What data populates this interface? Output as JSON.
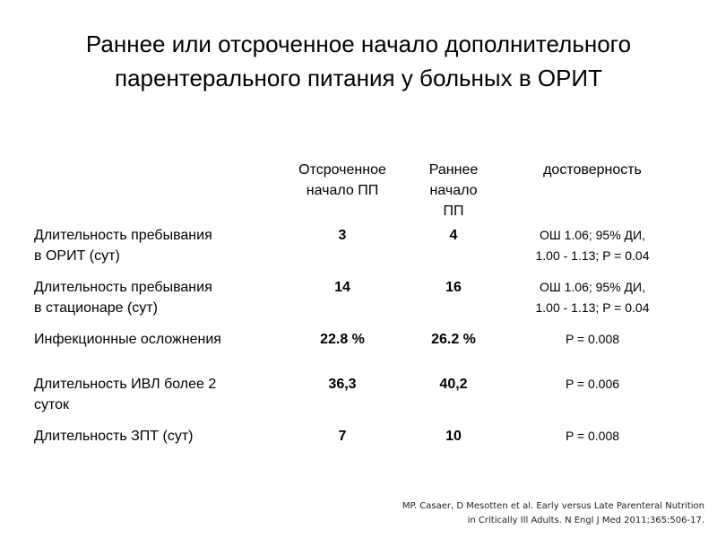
{
  "title": {
    "line1": "Раннее или отсроченное начало дополнительного",
    "line2": "парентерального питания у больных в ОРИТ"
  },
  "table": {
    "headers": {
      "label": "",
      "late": [
        "Отсроченное",
        "начало ПП"
      ],
      "early": [
        "Раннее",
        "начало",
        "ПП"
      ],
      "significance": [
        "достоверность"
      ]
    },
    "rows": [
      {
        "label": [
          "Длительность пребывания",
          "в ОРИТ (сут)"
        ],
        "late": "3",
        "early": "4",
        "significance": [
          "ОШ 1.06; 95% ДИ,",
          "1.00 - 1.13; P = 0.04"
        ]
      },
      {
        "label": [
          "Длительность пребывания",
          "в стационаре (сут)"
        ],
        "late": "14",
        "early": "16",
        "significance": [
          "ОШ 1.06; 95% ДИ,",
          "1.00 - 1.13; P = 0.04"
        ]
      },
      {
        "label": [
          "Инфекционные осложнения",
          ""
        ],
        "late": "22.8 %",
        "early": "26.2 %",
        "significance": [
          "P = 0.008",
          ""
        ]
      },
      {
        "label": [
          "Длительность ИВЛ более 2",
          "суток"
        ],
        "late": "36,3",
        "early": "40,2",
        "significance": [
          "P = 0.006",
          ""
        ]
      },
      {
        "label": [
          "Длительность ЗПТ (сут)",
          ""
        ],
        "late": "7",
        "early": "10",
        "significance": [
          "P = 0.008",
          ""
        ]
      }
    ]
  },
  "reference": {
    "line1": "MP. Casaer, D Mesotten et al. Early versus Late Parenteral Nutrition",
    "line2": "in Critically Ill Adults. N Engl J Med 2011;365:506-17."
  }
}
